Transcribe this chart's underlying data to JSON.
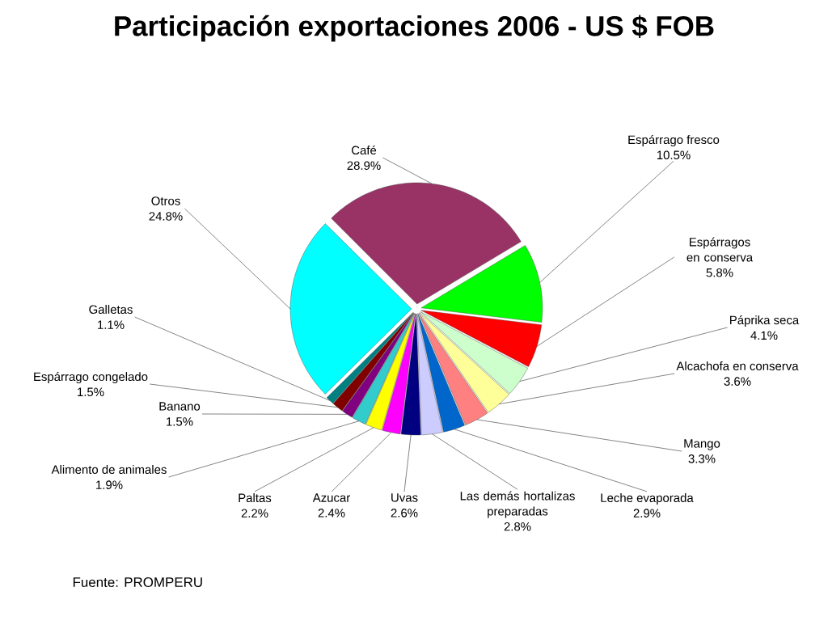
{
  "chart_data": {
    "type": "pie",
    "title": "Participación exportaciones 2006 - US $ FOB",
    "categories": [
      "Café",
      "Espárrago fresco",
      "Espárragos en conserva",
      "Páprika seca",
      "Alcachofa en conserva",
      "Mango",
      "Leche evaporada",
      "Las demás hortalizas preparadas",
      "Uvas",
      "Azucar",
      "Paltas",
      "Alimento de animales",
      "Banano",
      "Espárrago congelado",
      "Galletas",
      "Otros"
    ],
    "values": [
      28.9,
      10.5,
      5.8,
      4.1,
      3.6,
      3.3,
      2.9,
      2.8,
      2.6,
      2.4,
      2.2,
      1.9,
      1.5,
      1.5,
      1.1,
      24.8
    ],
    "value_labels": [
      "28.9%",
      "10.5%",
      "5.8%",
      "4.1%",
      "3.6%",
      "3.3%",
      "2.9%",
      "2.8%",
      "2.6%",
      "2.4%",
      "2.2%",
      "1.9%",
      "1.5%",
      "1.5%",
      "1.1%",
      "24.8%"
    ],
    "colors": [
      "#993366",
      "#00ff00",
      "#ff0000",
      "#ccffcc",
      "#ffff99",
      "#ff8080",
      "#0066cc",
      "#ccccff",
      "#000080",
      "#ff00ff",
      "#ffff00",
      "#33cccc",
      "#800080",
      "#800000",
      "#008080",
      "#00ffff"
    ],
    "annotations": [
      "Fuente: PROMPERU"
    ]
  }
}
